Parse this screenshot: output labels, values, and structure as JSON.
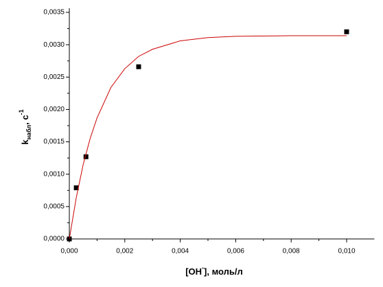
{
  "chart_data": {
    "type": "scatter",
    "xlabel": {
      "main": "[OH",
      "sup": "-",
      "rest": "], моль/л"
    },
    "ylabel": {
      "main": "k",
      "sub": "набл",
      "rest": ", c",
      "sup": "-1"
    },
    "xlim": [
      0,
      0.011
    ],
    "ylim": [
      0,
      0.0035
    ],
    "xticks": [
      {
        "value": 0,
        "label": "0,000"
      },
      {
        "value": 0.002,
        "label": "0,002"
      },
      {
        "value": 0.004,
        "label": "0,004"
      },
      {
        "value": 0.006,
        "label": "0,006"
      },
      {
        "value": 0.008,
        "label": "0,008"
      },
      {
        "value": 0.01,
        "label": "0,010"
      }
    ],
    "yticks": [
      {
        "value": 0,
        "label": "0,0000"
      },
      {
        "value": 0.0005,
        "label": "0,0005"
      },
      {
        "value": 0.001,
        "label": "0,0010"
      },
      {
        "value": 0.0015,
        "label": "0,0015"
      },
      {
        "value": 0.002,
        "label": "0,0020"
      },
      {
        "value": 0.0025,
        "label": "0,0025"
      },
      {
        "value": 0.003,
        "label": "0,0030"
      },
      {
        "value": 0.0035,
        "label": "0,0035"
      }
    ],
    "grid": false,
    "series": [
      {
        "type": "scatter",
        "color": "#000000",
        "x": [
          0,
          0.00025,
          0.0006,
          0.0025,
          0.01
        ],
        "values": [
          0,
          0.00079,
          0.00127,
          0.00266,
          0.0032
        ]
      },
      {
        "type": "line",
        "color": "#cc0000",
        "x": [
          0,
          0.00025,
          0.0005,
          0.00075,
          0.001,
          0.0015,
          0.002,
          0.0025,
          0.003,
          0.004,
          0.005,
          0.006,
          0.008,
          0.01
        ],
        "values": [
          0,
          0.000637,
          0.00115,
          0.00155,
          0.00187,
          0.00234,
          0.00263,
          0.00282,
          0.00293,
          0.00306,
          0.00311,
          0.00313,
          0.00314,
          0.00314
        ]
      }
    ]
  }
}
